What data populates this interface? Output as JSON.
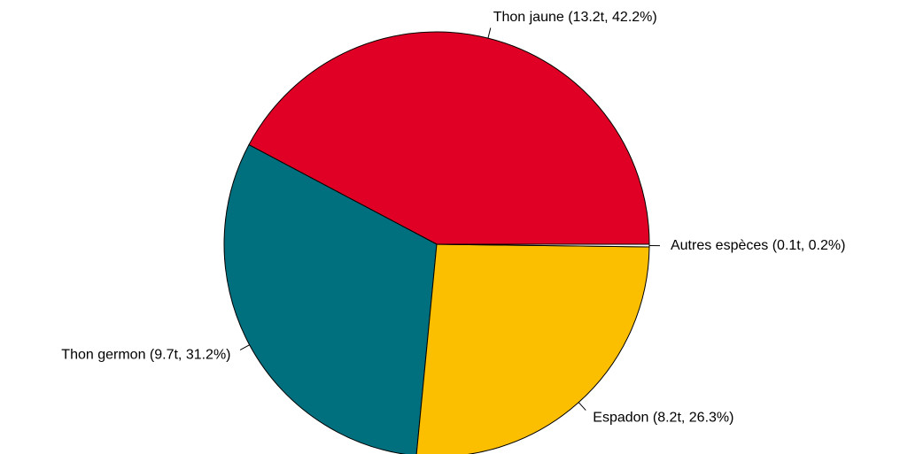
{
  "chart_data": {
    "type": "pie",
    "categories": [
      "Thon jaune (13.2t, 42.2%)",
      "Thon germon (9.7t, 31.2%)",
      "Espadon (8.2t, 26.3%)",
      "Autres espèces (0.1t, 0.2%)"
    ],
    "values": [
      42.2,
      31.2,
      26.3,
      0.2
    ],
    "colors": [
      "#e00025",
      "#00707f",
      "#fbbf00",
      "#ffffff"
    ]
  }
}
